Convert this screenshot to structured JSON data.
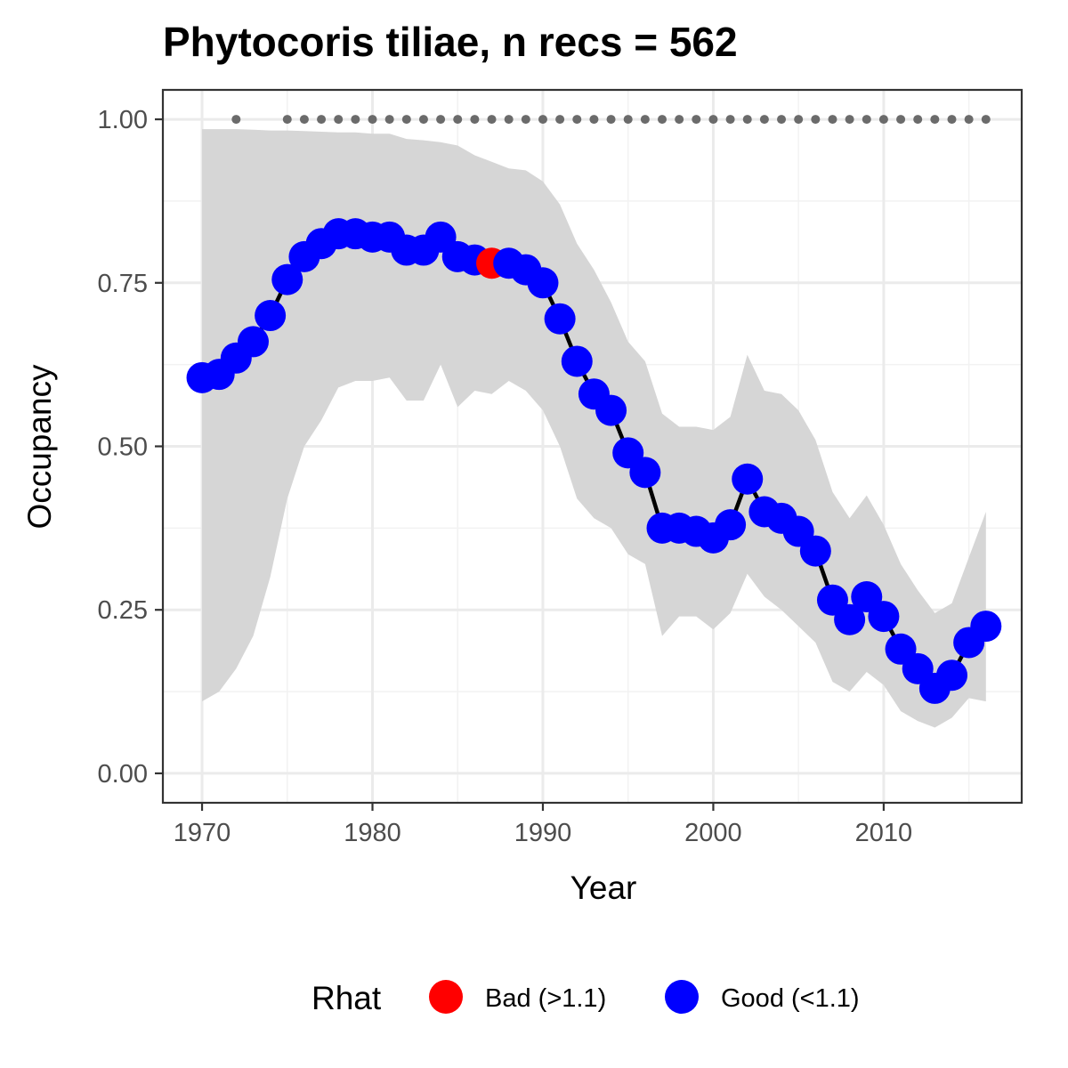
{
  "chart_data": {
    "type": "line",
    "title": "Phytocoris tiliae, n recs = 562",
    "xlabel": "Year",
    "ylabel": "Occupancy",
    "xlim": [
      1967.7,
      2018.1
    ],
    "ylim": [
      -0.045,
      1.045
    ],
    "x_ticks": [
      1970,
      1980,
      1990,
      2000,
      2010
    ],
    "x_tick_labels": [
      "1970",
      "1980",
      "1990",
      "2000",
      "2010"
    ],
    "y_ticks": [
      0,
      0.25,
      0.5,
      0.75,
      1.0
    ],
    "y_tick_labels": [
      "0.00",
      "0.25",
      "0.50",
      "0.75",
      "1.00"
    ],
    "grid": true,
    "legend": {
      "title": "Rhat",
      "position": "bottom",
      "entries": [
        {
          "label": "Bad (>1.1)",
          "color": "#ff0000"
        },
        {
          "label": "Good (<1.1)",
          "color": "#0000ff"
        }
      ]
    },
    "colors": {
      "good": "#0000ff",
      "bad": "#ff0000",
      "ribbon": "#d6d6d6",
      "line": "#000000",
      "records": "#6b6b6b"
    },
    "series": [
      {
        "name": "Occupancy",
        "x": [
          1970,
          1971,
          1972,
          1973,
          1974,
          1975,
          1976,
          1977,
          1978,
          1979,
          1980,
          1981,
          1982,
          1983,
          1984,
          1985,
          1986,
          1987,
          1988,
          1989,
          1990,
          1991,
          1992,
          1993,
          1994,
          1995,
          1996,
          1997,
          1998,
          1999,
          2000,
          2001,
          2002,
          2003,
          2004,
          2005,
          2006,
          2007,
          2008,
          2009,
          2010,
          2011,
          2012,
          2013,
          2014,
          2015,
          2016
        ],
        "y": [
          0.605,
          0.61,
          0.635,
          0.66,
          0.7,
          0.755,
          0.79,
          0.81,
          0.825,
          0.825,
          0.82,
          0.82,
          0.8,
          0.8,
          0.82,
          0.79,
          0.785,
          0.78,
          0.78,
          0.77,
          0.75,
          0.695,
          0.63,
          0.58,
          0.555,
          0.49,
          0.46,
          0.375,
          0.375,
          0.37,
          0.36,
          0.38,
          0.45,
          0.4,
          0.39,
          0.37,
          0.34,
          0.265,
          0.235,
          0.27,
          0.24,
          0.19,
          0.16,
          0.13,
          0.15,
          0.2,
          0.225
        ],
        "lower": [
          0.11,
          0.125,
          0.16,
          0.21,
          0.3,
          0.42,
          0.5,
          0.54,
          0.59,
          0.6,
          0.6,
          0.605,
          0.57,
          0.57,
          0.625,
          0.56,
          0.585,
          0.58,
          0.6,
          0.585,
          0.555,
          0.5,
          0.42,
          0.39,
          0.375,
          0.335,
          0.32,
          0.21,
          0.24,
          0.24,
          0.22,
          0.245,
          0.305,
          0.27,
          0.25,
          0.225,
          0.2,
          0.14,
          0.125,
          0.155,
          0.135,
          0.095,
          0.08,
          0.07,
          0.085,
          0.115,
          0.11
        ],
        "upper": [
          0.985,
          0.985,
          0.985,
          0.984,
          0.983,
          0.983,
          0.982,
          0.981,
          0.98,
          0.98,
          0.978,
          0.978,
          0.97,
          0.968,
          0.965,
          0.96,
          0.945,
          0.935,
          0.925,
          0.922,
          0.905,
          0.87,
          0.81,
          0.77,
          0.72,
          0.66,
          0.63,
          0.55,
          0.53,
          0.53,
          0.525,
          0.545,
          0.64,
          0.585,
          0.58,
          0.555,
          0.51,
          0.43,
          0.39,
          0.425,
          0.38,
          0.32,
          0.28,
          0.245,
          0.26,
          0.33,
          0.4
        ],
        "rhat": [
          "Good",
          "Good",
          "Good",
          "Good",
          "Good",
          "Good",
          "Good",
          "Good",
          "Good",
          "Good",
          "Good",
          "Good",
          "Good",
          "Good",
          "Good",
          "Good",
          "Good",
          "Bad",
          "Good",
          "Good",
          "Good",
          "Good",
          "Good",
          "Good",
          "Good",
          "Good",
          "Good",
          "Good",
          "Good",
          "Good",
          "Good",
          "Good",
          "Good",
          "Good",
          "Good",
          "Good",
          "Good",
          "Good",
          "Good",
          "Good",
          "Good",
          "Good",
          "Good",
          "Good",
          "Good",
          "Good",
          "Good"
        ]
      }
    ],
    "record_years": {
      "y": 1.0,
      "x": [
        1972,
        1975,
        1976,
        1977,
        1978,
        1979,
        1980,
        1981,
        1982,
        1983,
        1984,
        1985,
        1986,
        1987,
        1988,
        1989,
        1990,
        1991,
        1992,
        1993,
        1994,
        1995,
        1996,
        1997,
        1998,
        1999,
        2000,
        2001,
        2002,
        2003,
        2004,
        2005,
        2006,
        2007,
        2008,
        2009,
        2010,
        2011,
        2012,
        2013,
        2014,
        2015,
        2016
      ]
    }
  }
}
